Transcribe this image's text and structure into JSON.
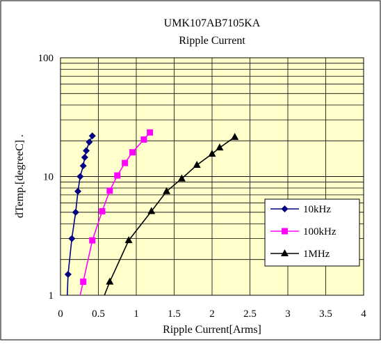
{
  "chart_data": {
    "type": "line",
    "title": "UMK107AB7105KA",
    "subtitle": "Ripple Current",
    "xlabel": "Ripple Current[Arms]",
    "ylabel": "dTemp.[degreeC] .",
    "xlim": [
      0,
      4
    ],
    "ylim": [
      1,
      100
    ],
    "y_scale": "log",
    "x_ticks": [
      "0",
      "0.5",
      "1",
      "1.5",
      "2",
      "2.5",
      "3",
      "3.5",
      "4"
    ],
    "y_ticks": [
      "1",
      "10",
      "100"
    ],
    "grid": true,
    "legend_position": "lower-right",
    "plot_background": "#ffffcc",
    "series": [
      {
        "name": "10kHz",
        "color": "#000080",
        "marker": "diamond",
        "points": [
          [
            0.1,
            1.5
          ],
          [
            0.15,
            3.0
          ],
          [
            0.2,
            5.0
          ],
          [
            0.23,
            7.5
          ],
          [
            0.26,
            10.0
          ],
          [
            0.3,
            12.3
          ],
          [
            0.32,
            14.5
          ],
          [
            0.34,
            16.5
          ],
          [
            0.38,
            19.5
          ],
          [
            0.42,
            22.0
          ]
        ],
        "curve_start": [
          0.09,
          1.0
        ]
      },
      {
        "name": "100kHz",
        "color": "#ff00ff",
        "marker": "square",
        "points": [
          [
            0.3,
            1.3
          ],
          [
            0.42,
            2.9
          ],
          [
            0.55,
            5.1
          ],
          [
            0.65,
            7.6
          ],
          [
            0.75,
            10.2
          ],
          [
            0.85,
            13.0
          ],
          [
            0.95,
            16.0
          ],
          [
            1.1,
            20.5
          ],
          [
            1.18,
            23.5
          ]
        ],
        "curve_start": [
          0.26,
          1.0
        ]
      },
      {
        "name": "1MHz",
        "color": "#000000",
        "marker": "triangle",
        "points": [
          [
            0.65,
            1.3
          ],
          [
            0.9,
            2.9
          ],
          [
            1.2,
            5.1
          ],
          [
            1.4,
            7.5
          ],
          [
            1.6,
            9.6
          ],
          [
            1.8,
            12.5
          ],
          [
            2.0,
            15.5
          ],
          [
            2.1,
            17.5
          ],
          [
            2.3,
            21.5
          ]
        ],
        "curve_start": [
          0.58,
          1.0
        ]
      }
    ]
  }
}
